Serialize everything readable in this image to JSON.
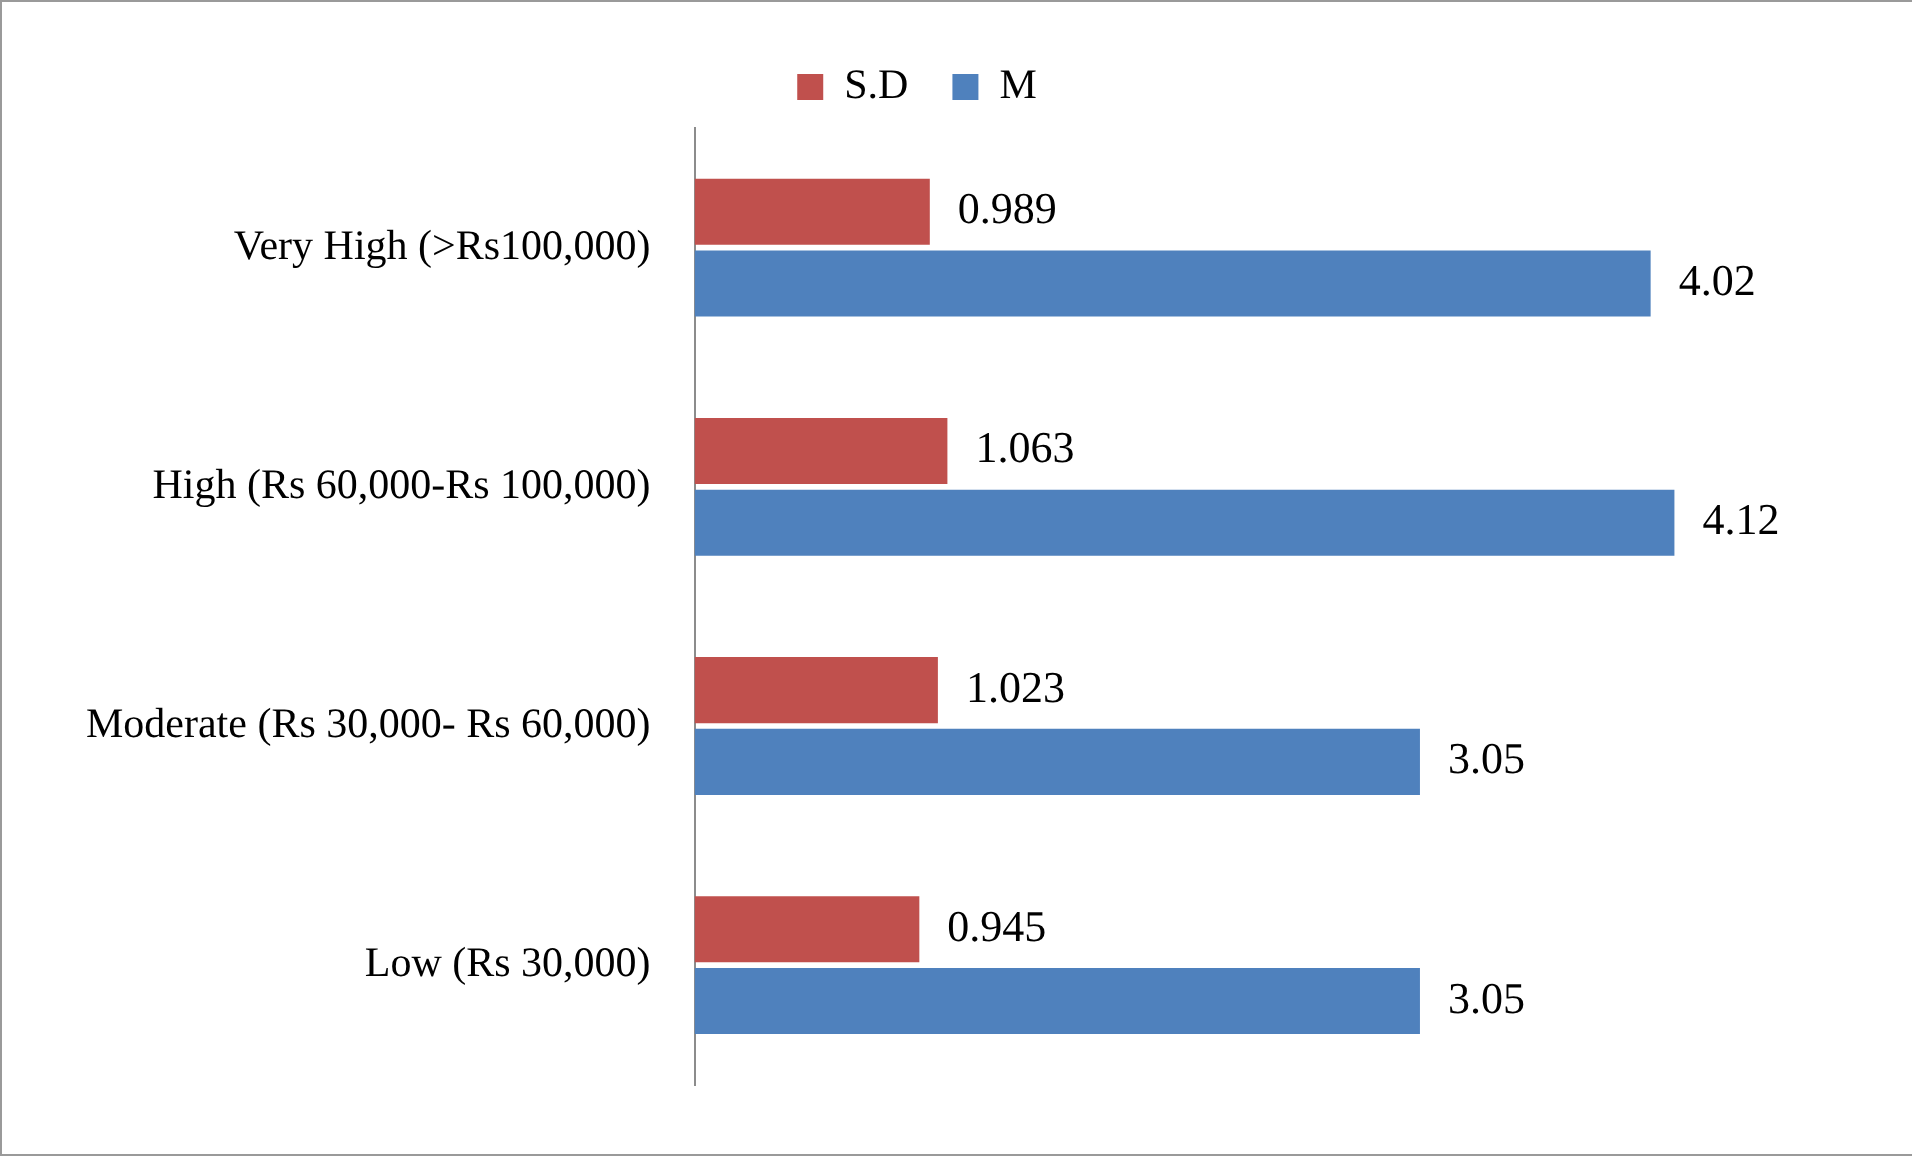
{
  "chart_data": {
    "type": "bar",
    "orientation": "horizontal",
    "categories": [
      "Very High (>Rs100,000)",
      "High (Rs 60,000-Rs 100,000)",
      "Moderate (Rs 30,000- Rs 60,000)",
      "Low (Rs 30,000)"
    ],
    "series": [
      {
        "name": "S.D",
        "color": "#c0504d",
        "values": [
          0.989,
          1.063,
          1.023,
          0.945
        ]
      },
      {
        "name": "M",
        "color": "#4f81bd",
        "values": [
          4.02,
          4.12,
          3.05,
          3.05
        ]
      }
    ],
    "data_labels": true,
    "legend": "top"
  }
}
